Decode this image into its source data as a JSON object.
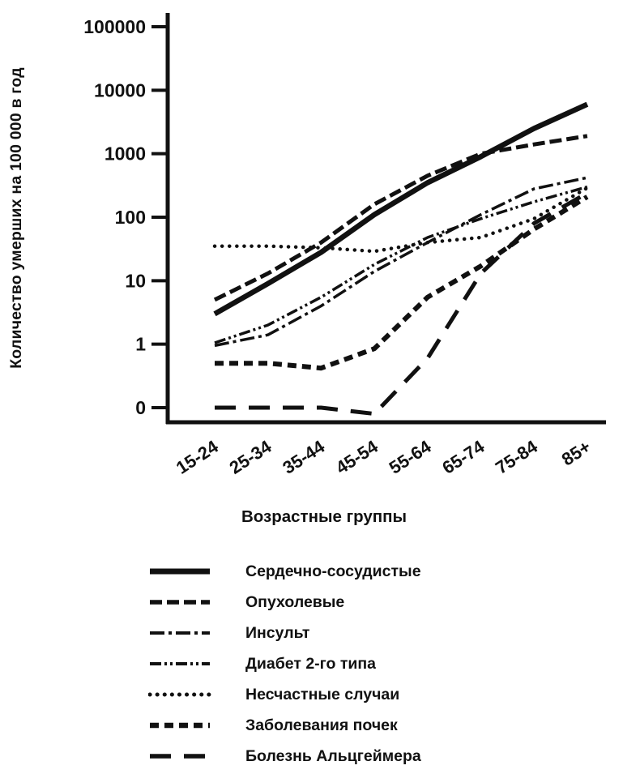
{
  "chart_data": {
    "type": "line",
    "title": "",
    "xlabel": "Возрастные группы",
    "ylabel": "Количество умерших на 100 000 в год",
    "y_scale": "log",
    "y_ticks": [
      "100000",
      "10000",
      "1000",
      "100",
      "10",
      "1",
      "0"
    ],
    "ylim": [
      0,
      100000
    ],
    "grid": false,
    "legend_position": "bottom",
    "line_color": "#111111",
    "categories": [
      "15-24",
      "25-34",
      "35-44",
      "45-54",
      "55-64",
      "65-74",
      "75-84",
      "85+"
    ],
    "series": [
      {
        "name": "Сердечно-сосудистые",
        "line_style": "solid",
        "values": [
          3,
          9,
          28,
          110,
          350,
          900,
          2500,
          6000
        ]
      },
      {
        "name": "Опухолевые",
        "line_style": "dashed",
        "values": [
          5,
          13,
          40,
          160,
          450,
          1000,
          1400,
          1900
        ]
      },
      {
        "name": "Инсульт",
        "line_style": "dash-dot",
        "values": [
          0.95,
          1.4,
          4,
          14,
          40,
          110,
          280,
          420
        ]
      },
      {
        "name": "Диабет 2-го типа",
        "line_style": "dash-dot-dot",
        "values": [
          1.05,
          2,
          5.5,
          18,
          48,
          95,
          175,
          300
        ]
      },
      {
        "name": "Несчастные случаи",
        "line_style": "dotted",
        "values": [
          35,
          35,
          33,
          29,
          40,
          48,
          95,
          290
        ]
      },
      {
        "name": "Заболевания почек",
        "line_style": "dashed-thick",
        "values": [
          0.5,
          0.5,
          0.42,
          0.85,
          5.5,
          17,
          65,
          210
        ]
      },
      {
        "name": "Болезнь Альцгеймера",
        "line_style": "long-dash",
        "values": [
          0.1,
          0.1,
          0.1,
          0.08,
          0.6,
          13,
          80,
          240
        ]
      }
    ]
  }
}
